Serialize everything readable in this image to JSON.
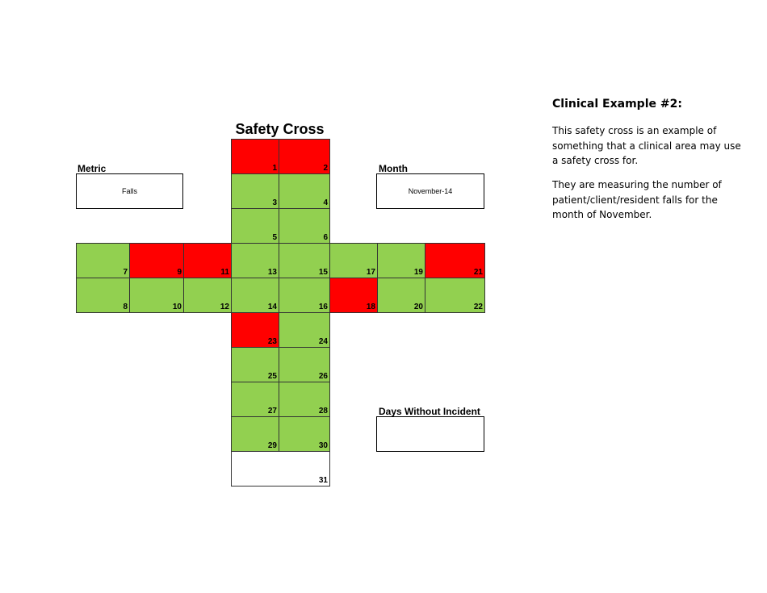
{
  "cross": {
    "title": "Safety Cross",
    "metric_label": "Metric",
    "metric_value": "Falls",
    "month_label": "Month",
    "month_value": "November-14",
    "days_label": "Days Without Incident",
    "days_value": ""
  },
  "colors": {
    "safe": "#92d050",
    "incident": "#ff0000",
    "empty": "#ffffff"
  },
  "days": [
    {
      "day": "1",
      "status": "incident"
    },
    {
      "day": "2",
      "status": "incident"
    },
    {
      "day": "3",
      "status": "safe"
    },
    {
      "day": "4",
      "status": "safe"
    },
    {
      "day": "5",
      "status": "safe"
    },
    {
      "day": "6",
      "status": "safe"
    },
    {
      "day": "7",
      "status": "safe"
    },
    {
      "day": "8",
      "status": "safe"
    },
    {
      "day": "9",
      "status": "incident"
    },
    {
      "day": "10",
      "status": "safe"
    },
    {
      "day": "11",
      "status": "incident"
    },
    {
      "day": "12",
      "status": "safe"
    },
    {
      "day": "13",
      "status": "safe"
    },
    {
      "day": "14",
      "status": "safe"
    },
    {
      "day": "15",
      "status": "safe"
    },
    {
      "day": "16",
      "status": "safe"
    },
    {
      "day": "17",
      "status": "safe"
    },
    {
      "day": "18",
      "status": "incident"
    },
    {
      "day": "19",
      "status": "safe"
    },
    {
      "day": "20",
      "status": "safe"
    },
    {
      "day": "21",
      "status": "incident"
    },
    {
      "day": "22",
      "status": "safe"
    },
    {
      "day": "23",
      "status": "incident"
    },
    {
      "day": "24",
      "status": "safe"
    },
    {
      "day": "25",
      "status": "safe"
    },
    {
      "day": "26",
      "status": "safe"
    },
    {
      "day": "27",
      "status": "safe"
    },
    {
      "day": "28",
      "status": "safe"
    },
    {
      "day": "29",
      "status": "safe"
    },
    {
      "day": "30",
      "status": "safe"
    },
    {
      "day": "31",
      "status": "empty"
    }
  ],
  "side": {
    "heading": "Clinical Example #2:",
    "para1": "This safety cross is an example of something that a clinical area may use a safety cross for.",
    "para2": "They are measuring the number of patient/client/resident falls for the month of November."
  }
}
